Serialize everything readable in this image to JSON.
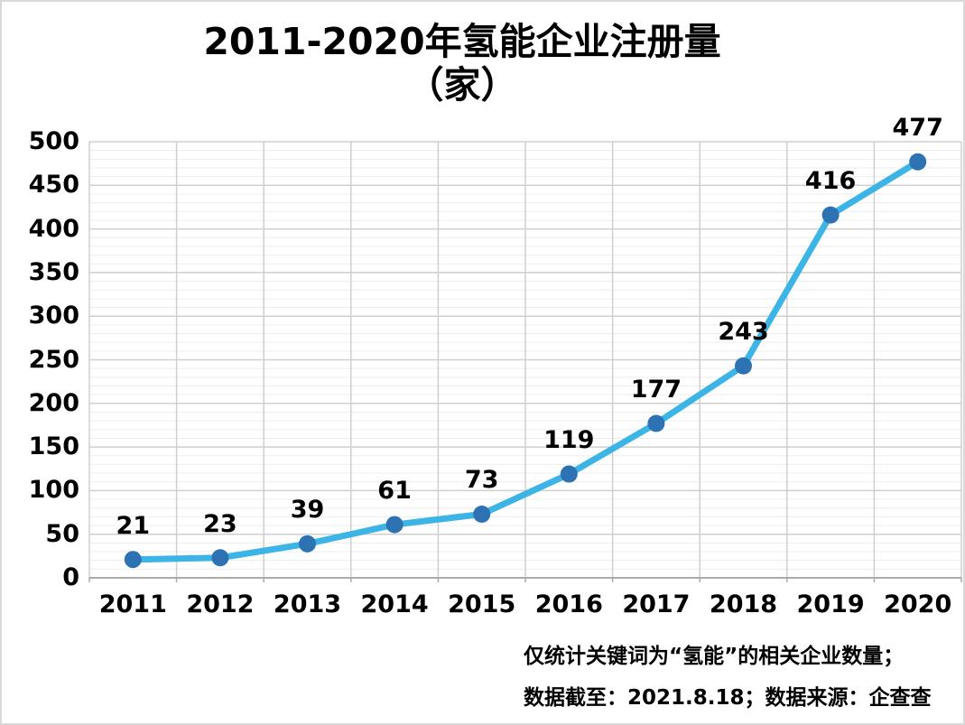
{
  "title": {
    "line1": "2011-2020年氢能企业注册量",
    "line2": "（家）"
  },
  "footnote": {
    "line1": "仅统计关键词为“氢能”的相关企业数量；",
    "line2": "数据截至：2021.8.18；数据来源：企查查"
  },
  "chart_data": {
    "type": "line",
    "title": "2011-2020年氢能企业注册量（家）",
    "categories": [
      "2011",
      "2012",
      "2013",
      "2014",
      "2015",
      "2016",
      "2017",
      "2018",
      "2019",
      "2020"
    ],
    "values": [
      21,
      23,
      39,
      61,
      73,
      119,
      177,
      243,
      416,
      477
    ],
    "xlabel": "",
    "ylabel": "",
    "ylim": [
      0,
      500
    ],
    "yticks": [
      0,
      50,
      100,
      150,
      200,
      250,
      300,
      350,
      400,
      450,
      500
    ],
    "minor_unit": 10,
    "grid": "major-and-minor",
    "legend": "none",
    "data_labels": "above-points",
    "colors": {
      "line": "#3CB4E6",
      "marker": "#2D73B4",
      "grid_major": "#CFCFCF",
      "grid_minor": "#EDEDED",
      "axis": "#ABABAB",
      "text": "#000000",
      "frame_border": "#D9D9D9",
      "background": "#FFFFFF"
    }
  }
}
